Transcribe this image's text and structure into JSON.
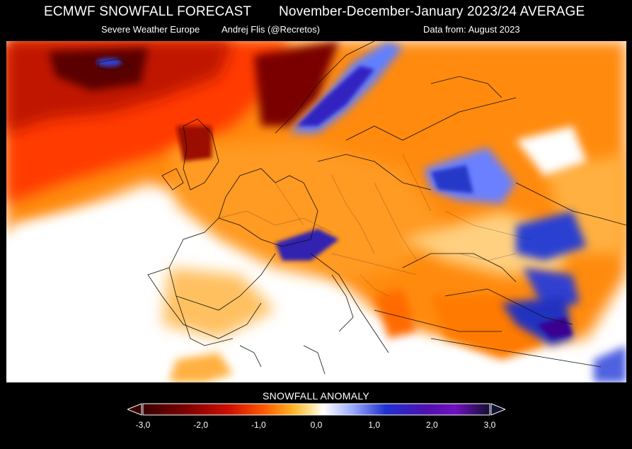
{
  "header": {
    "title": "ECMWF SNOWFALL FORECAST",
    "period": "November-December-January 2023/24 AVERAGE",
    "source": "Severe Weather Europe",
    "author": "Andrej Flis (@Recretos)",
    "data_from": "Data from: August 2023"
  },
  "map": {
    "region": "Europe",
    "variable": "snowfall anomaly",
    "colors": {
      "strong_negative": "#4a0000",
      "negative": "#d01000",
      "mild_negative": "#ff6a00",
      "slight_negative": "#ffb030",
      "neutral": "#ffffff",
      "positive": "#3040d0",
      "strong_positive": "#1a0080"
    }
  },
  "legend": {
    "title": "SNOWFALL ANOMALY",
    "ticks": [
      {
        "label": "-3,0",
        "value": -3.0
      },
      {
        "label": "-2,0",
        "value": -2.0
      },
      {
        "label": "-1,0",
        "value": -1.0
      },
      {
        "label": "0,0",
        "value": 0.0
      },
      {
        "label": "1,0",
        "value": 1.0
      },
      {
        "label": "2,0",
        "value": 2.0
      },
      {
        "label": "3,0",
        "value": 3.0
      }
    ],
    "range": [
      -3.0,
      3.0
    ]
  }
}
